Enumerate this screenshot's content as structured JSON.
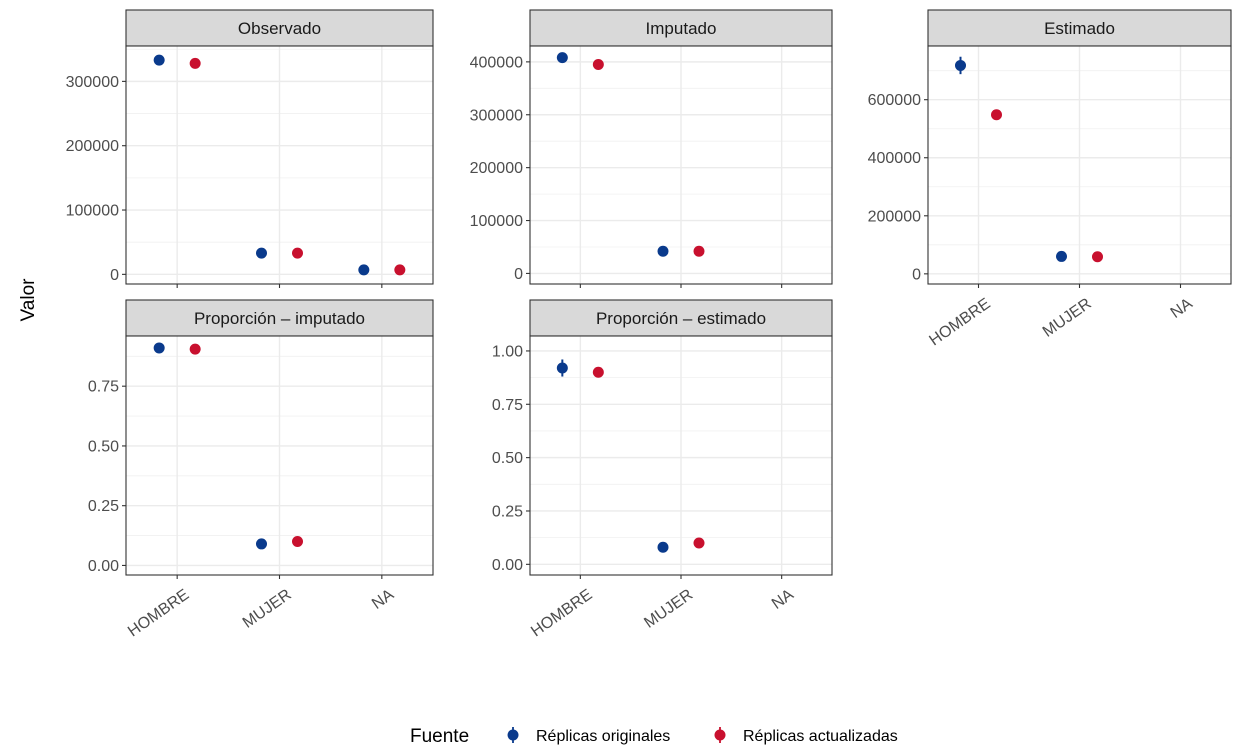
{
  "chart_data": {
    "type": "scatter",
    "ylabel": "Valor",
    "xlabel": "",
    "categories": [
      "HOMBRE",
      "MUJER",
      "NA"
    ],
    "legend": {
      "title": "Fuente",
      "placement": "bottom",
      "entries": [
        {
          "name": "Réplicas originales",
          "color": "#0a3a8c"
        },
        {
          "name": "Réplicas actualizadas",
          "color": "#c8102e"
        }
      ]
    },
    "panels": [
      {
        "title": "Observado",
        "ylim": [
          -15000,
          355000
        ],
        "yticks": [
          0,
          100000,
          200000,
          300000
        ],
        "ytick_labels": [
          "0",
          "100000",
          "200000",
          "300000"
        ],
        "series": [
          {
            "name": "Réplicas originales",
            "points": [
              {
                "x": "HOMBRE",
                "y": 333000,
                "err": 0
              },
              {
                "x": "MUJER",
                "y": 33000,
                "err": 0
              },
              {
                "x": "NA",
                "y": 7000,
                "err": 0
              }
            ]
          },
          {
            "name": "Réplicas actualizadas",
            "points": [
              {
                "x": "HOMBRE",
                "y": 328000,
                "err": 0
              },
              {
                "x": "MUJER",
                "y": 33000,
                "err": 0
              },
              {
                "x": "NA",
                "y": 7000,
                "err": 0
              }
            ]
          }
        ]
      },
      {
        "title": "Imputado",
        "ylim": [
          -20000,
          430000
        ],
        "yticks": [
          0,
          100000,
          200000,
          300000,
          400000
        ],
        "ytick_labels": [
          "0",
          "100000",
          "200000",
          "300000",
          "400000"
        ],
        "series": [
          {
            "name": "Réplicas originales",
            "points": [
              {
                "x": "HOMBRE",
                "y": 408000,
                "err": 0
              },
              {
                "x": "MUJER",
                "y": 42000,
                "err": 0
              }
            ]
          },
          {
            "name": "Réplicas actualizadas",
            "points": [
              {
                "x": "HOMBRE",
                "y": 395000,
                "err": 0
              },
              {
                "x": "MUJER",
                "y": 42000,
                "err": 0
              }
            ]
          }
        ]
      },
      {
        "title": "Estimado",
        "ylim": [
          -35000,
          785000
        ],
        "yticks": [
          0,
          200000,
          400000,
          600000
        ],
        "ytick_labels": [
          "0",
          "200000",
          "400000",
          "600000"
        ],
        "series": [
          {
            "name": "Réplicas originales",
            "points": [
              {
                "x": "HOMBRE",
                "y": 718000,
                "err": 30000
              },
              {
                "x": "MUJER",
                "y": 60000,
                "err": 0
              }
            ]
          },
          {
            "name": "Réplicas actualizadas",
            "points": [
              {
                "x": "HOMBRE",
                "y": 548000,
                "err": 0
              },
              {
                "x": "MUJER",
                "y": 59000,
                "err": 0
              }
            ]
          }
        ]
      },
      {
        "title": "Proporción – imputado",
        "ylim": [
          -0.04,
          0.96
        ],
        "yticks": [
          0,
          0.25,
          0.5,
          0.75
        ],
        "ytick_labels": [
          "0.00",
          "0.25",
          "0.50",
          "0.75"
        ],
        "series": [
          {
            "name": "Réplicas originales",
            "points": [
              {
                "x": "HOMBRE",
                "y": 0.91,
                "err": 0.01
              },
              {
                "x": "MUJER",
                "y": 0.09,
                "err": 0
              }
            ]
          },
          {
            "name": "Réplicas actualizadas",
            "points": [
              {
                "x": "HOMBRE",
                "y": 0.905,
                "err": 0
              },
              {
                "x": "MUJER",
                "y": 0.1,
                "err": 0
              }
            ]
          }
        ]
      },
      {
        "title": "Proporción – estimado",
        "ylim": [
          -0.05,
          1.07
        ],
        "yticks": [
          0,
          0.25,
          0.5,
          0.75,
          1.0
        ],
        "ytick_labels": [
          "0.00",
          "0.25",
          "0.50",
          "0.75",
          "1.00"
        ],
        "series": [
          {
            "name": "Réplicas originales",
            "points": [
              {
                "x": "HOMBRE",
                "y": 0.92,
                "err": 0.04
              },
              {
                "x": "MUJER",
                "y": 0.08,
                "err": 0
              }
            ]
          },
          {
            "name": "Réplicas actualizadas",
            "points": [
              {
                "x": "HOMBRE",
                "y": 0.9,
                "err": 0
              },
              {
                "x": "MUJER",
                "y": 0.1,
                "err": 0
              }
            ]
          }
        ]
      }
    ]
  }
}
